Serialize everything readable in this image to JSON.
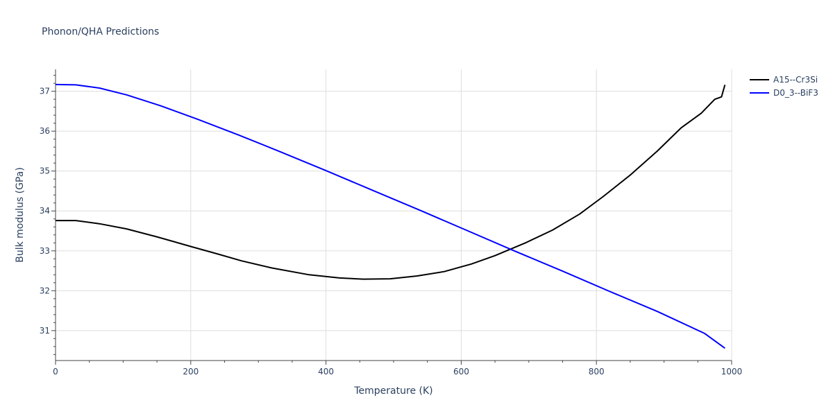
{
  "chart_data": {
    "type": "line",
    "title": "Phonon/QHA Predictions",
    "xlabel": "Temperature (K)",
    "ylabel": "Bulk modulus (GPa)",
    "xlim": [
      0,
      1000
    ],
    "ylim": [
      30.25,
      37.55
    ],
    "xticks": [
      0,
      200,
      400,
      600,
      800,
      1000
    ],
    "yticks": [
      31,
      32,
      33,
      34,
      35,
      36,
      37
    ],
    "grid": true,
    "legend_position": "top-right",
    "series": [
      {
        "name": "A15--Cr3Si",
        "color": "#000000",
        "x": [
          0,
          30,
          65,
          105,
          150,
          200,
          240,
          275,
          320,
          375,
          420,
          455,
          495,
          535,
          575,
          615,
          650,
          695,
          735,
          775,
          810,
          850,
          890,
          925,
          955,
          975,
          985,
          990
        ],
        "y": [
          33.76,
          33.76,
          33.68,
          33.55,
          33.35,
          33.11,
          32.92,
          32.75,
          32.57,
          32.4,
          32.32,
          32.29,
          32.3,
          32.37,
          32.48,
          32.67,
          32.88,
          33.2,
          33.52,
          33.92,
          34.36,
          34.9,
          35.5,
          36.08,
          36.45,
          36.8,
          36.86,
          37.16
        ]
      },
      {
        "name": "D0_3--BiF3",
        "color": "#0000ff",
        "x": [
          0,
          30,
          65,
          105,
          155,
          210,
          270,
          330,
          400,
          470,
          540,
          610,
          680,
          750,
          820,
          890,
          960,
          990
        ],
        "y": [
          37.17,
          37.16,
          37.08,
          36.91,
          36.64,
          36.3,
          35.91,
          35.5,
          35.01,
          34.51,
          34.01,
          33.5,
          32.99,
          32.49,
          31.98,
          31.48,
          30.93,
          30.56
        ]
      }
    ]
  }
}
